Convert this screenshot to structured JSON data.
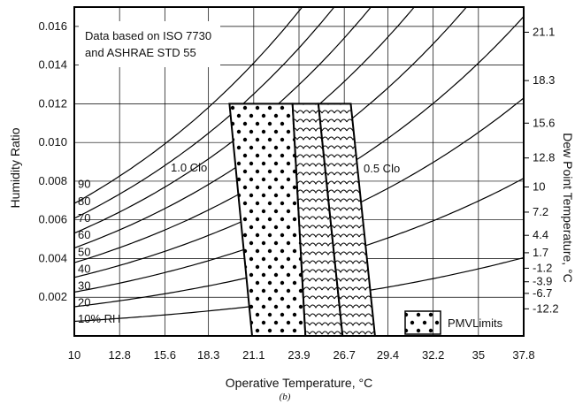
{
  "chart_data": {
    "type": "line",
    "xlabel": "Operative Temperature, °C",
    "ylabel": "Humidity Ratio",
    "y2label": "Dew Point Temperature, °C",
    "caption": "(b)",
    "xlim": [
      10,
      37.8
    ],
    "ylim": [
      0,
      0.017
    ],
    "x_ticks": [
      "10",
      "12.8",
      "15.6",
      "18.3",
      "21.1",
      "23.9",
      "26.7",
      "29.4",
      "32.2",
      "35",
      "37.8"
    ],
    "x_tick_values": [
      10,
      12.8,
      15.6,
      18.3,
      21.1,
      23.9,
      26.7,
      29.4,
      32.2,
      35,
      37.8
    ],
    "y_ticks": [
      "0.002",
      "0.004",
      "0.006",
      "0.008",
      "0.010",
      "0.012",
      "0.014",
      "0.016"
    ],
    "y_tick_values": [
      0.002,
      0.004,
      0.006,
      0.008,
      0.01,
      0.012,
      0.014,
      0.016
    ],
    "dew_point_ticks": [
      {
        "label": "21.1",
        "w": 0.0157
      },
      {
        "label": "18.3",
        "w": 0.0132
      },
      {
        "label": "15.6",
        "w": 0.011
      },
      {
        "label": "12.8",
        "w": 0.0092
      },
      {
        "label": "10",
        "w": 0.0077
      },
      {
        "label": "7.2",
        "w": 0.0064
      },
      {
        "label": "4.4",
        "w": 0.0052
      },
      {
        "label": "1.7",
        "w": 0.0043
      },
      {
        "label": "-1.2",
        "w": 0.0035
      },
      {
        "label": "-3.9",
        "w": 0.0028
      },
      {
        "label": "-6.7",
        "w": 0.0022
      },
      {
        "label": "-12.2",
        "w": 0.0014
      }
    ],
    "grid": true,
    "rh_labels": [
      "90",
      "80",
      "70",
      "60",
      "50",
      "40",
      "30",
      "20",
      "10% RH"
    ],
    "rh_values": [
      90,
      80,
      70,
      60,
      50,
      40,
      30,
      20,
      10
    ],
    "annotations": {
      "source_line1": "Data based on ISO 7730",
      "source_line2": "and ASHRAE STD 55",
      "clo_winter": "1.0 Clo",
      "clo_summer": "0.5 Clo"
    },
    "comfort_zones": [
      {
        "name": "1.0 Clo",
        "hatch": "dots",
        "polygon": [
          [
            19.6,
            0.012
          ],
          [
            23.5,
            0.012
          ],
          [
            24.3,
            0
          ],
          [
            21.0,
            0
          ]
        ]
      },
      {
        "name": "0.5 Clo",
        "hatch": "scallops",
        "polygon": [
          [
            23.5,
            0.012
          ],
          [
            25.1,
            0.012
          ],
          [
            26.6,
            0
          ],
          [
            24.3,
            0
          ]
        ]
      },
      {
        "name": "0.5 Clo",
        "hatch": "scallops",
        "polygon": [
          [
            25.1,
            0.012
          ],
          [
            27.1,
            0.012
          ],
          [
            28.6,
            0
          ],
          [
            26.6,
            0
          ]
        ]
      }
    ],
    "legend": {
      "label": "PMVLimits",
      "placement": "bottom-right"
    }
  }
}
